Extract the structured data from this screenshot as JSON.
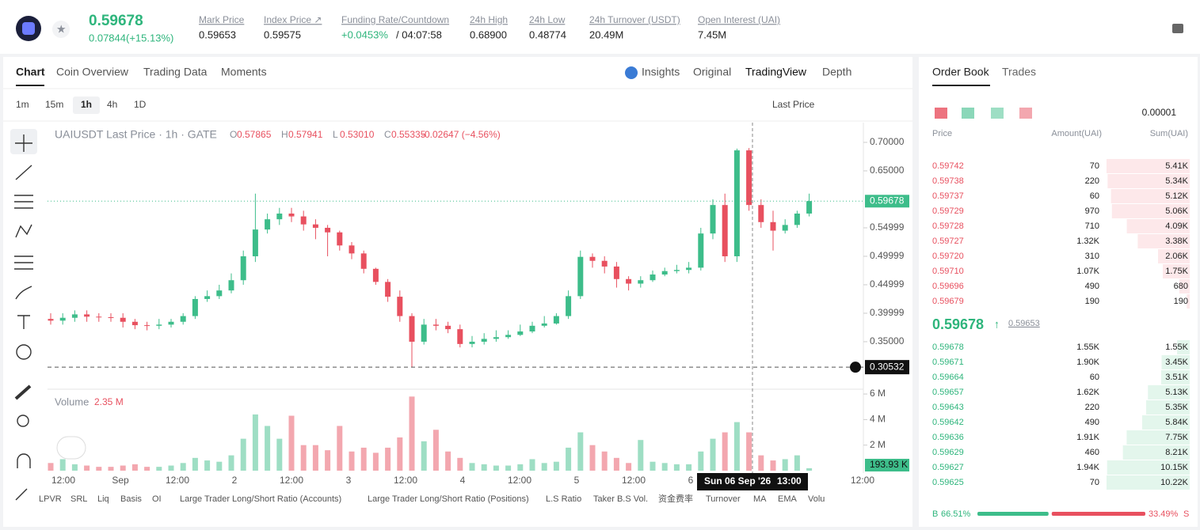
{
  "header": {
    "price": "0.59678",
    "change": "0.07844(+15.13%)",
    "stats": [
      {
        "label": "Mark Price",
        "value": "0.59653"
      },
      {
        "label": "Index Price ↗",
        "value": "0.59575"
      },
      {
        "label": "Funding Rate/Countdown",
        "value": "+0.0453%",
        "countdown": "/ 04:07:58"
      },
      {
        "label": "24h High",
        "value": "0.68900"
      },
      {
        "label": "24h Low",
        "value": "0.48774"
      },
      {
        "label": "24h Turnover (USDT)",
        "value": "20.49M"
      },
      {
        "label": "Open Interest (UAI)",
        "value": "7.45M"
      }
    ]
  },
  "chart_tabs": [
    "Chart",
    "Coin Overview",
    "Trading Data",
    "Moments"
  ],
  "view_tabs": [
    "Insights",
    "Original",
    "TradingView",
    "Depth"
  ],
  "intervals": [
    "1m",
    "15m",
    "1h",
    "4h",
    "1D"
  ],
  "price_type": "Last Price",
  "legend": {
    "title": "UAIUSDT Last Price · 1h · GATE",
    "ohlc": [
      {
        "key": "O",
        "value": "0.57865"
      },
      {
        "key": "H",
        "value": "0.57941"
      },
      {
        "key": "L",
        "value": "0.53010"
      },
      {
        "key": "C",
        "value": "0.55335"
      }
    ],
    "change": "-0.02647 (−4.56%)"
  },
  "chart_data": {
    "type": "candlestick",
    "open": [
      0.39,
      0.387,
      0.392,
      0.398,
      0.394,
      0.393,
      0.392,
      0.385,
      0.379,
      0.378,
      0.38,
      0.385,
      0.395,
      0.425,
      0.43,
      0.44,
      0.458,
      0.5,
      0.547,
      0.565,
      0.575,
      0.57,
      0.556,
      0.55,
      0.542,
      0.519,
      0.505,
      0.478,
      0.455,
      0.429,
      0.395,
      0.35,
      0.38,
      0.378,
      0.372,
      0.346,
      0.35,
      0.355,
      0.358,
      0.362,
      0.368,
      0.378,
      0.382,
      0.395,
      0.43,
      0.499,
      0.492,
      0.482,
      0.46,
      0.452,
      0.458,
      0.468,
      0.474,
      0.476,
      0.48,
      0.54,
      0.59,
      0.5,
      0.686,
      0.59,
      0.56,
      0.545,
      0.555,
      0.575
    ],
    "high": [
      0.4,
      0.4,
      0.405,
      0.405,
      0.4,
      0.4,
      0.4,
      0.39,
      0.385,
      0.39,
      0.39,
      0.4,
      0.43,
      0.44,
      0.45,
      0.47,
      0.51,
      0.61,
      0.575,
      0.585,
      0.585,
      0.58,
      0.565,
      0.555,
      0.545,
      0.525,
      0.51,
      0.48,
      0.46,
      0.44,
      0.4,
      0.39,
      0.39,
      0.385,
      0.38,
      0.36,
      0.365,
      0.37,
      0.37,
      0.38,
      0.385,
      0.395,
      0.4,
      0.44,
      0.51,
      0.505,
      0.5,
      0.49,
      0.465,
      0.465,
      0.475,
      0.48,
      0.485,
      0.49,
      0.55,
      0.6,
      0.61,
      0.689,
      0.69,
      0.6,
      0.58,
      0.565,
      0.58,
      0.61
    ],
    "low": [
      0.38,
      0.38,
      0.385,
      0.385,
      0.385,
      0.385,
      0.375,
      0.372,
      0.37,
      0.372,
      0.375,
      0.38,
      0.39,
      0.42,
      0.425,
      0.435,
      0.45,
      0.49,
      0.54,
      0.555,
      0.56,
      0.545,
      0.53,
      0.5,
      0.51,
      0.495,
      0.47,
      0.45,
      0.42,
      0.385,
      0.3053,
      0.345,
      0.37,
      0.365,
      0.34,
      0.34,
      0.345,
      0.35,
      0.355,
      0.36,
      0.365,
      0.375,
      0.38,
      0.39,
      0.425,
      0.48,
      0.47,
      0.445,
      0.44,
      0.445,
      0.455,
      0.465,
      0.47,
      0.47,
      0.475,
      0.53,
      0.49,
      0.49,
      0.58,
      0.55,
      0.51,
      0.54,
      0.55,
      0.57
    ],
    "close": [
      0.387,
      0.392,
      0.398,
      0.394,
      0.393,
      0.392,
      0.385,
      0.379,
      0.378,
      0.38,
      0.385,
      0.395,
      0.425,
      0.43,
      0.44,
      0.458,
      0.5,
      0.547,
      0.565,
      0.575,
      0.57,
      0.556,
      0.55,
      0.542,
      0.519,
      0.505,
      0.478,
      0.455,
      0.429,
      0.395,
      0.35,
      0.38,
      0.378,
      0.372,
      0.346,
      0.35,
      0.355,
      0.358,
      0.362,
      0.368,
      0.378,
      0.382,
      0.395,
      0.43,
      0.499,
      0.492,
      0.482,
      0.46,
      0.452,
      0.458,
      0.468,
      0.474,
      0.476,
      0.48,
      0.54,
      0.59,
      0.5,
      0.686,
      0.59,
      0.56,
      0.545,
      0.555,
      0.575,
      0.597
    ],
    "ylim": [
      0.2694,
      0.7347
    ],
    "yticks": [
      {
        "value": 0.7,
        "label": "0.70000"
      },
      {
        "value": 0.65,
        "label": "0.65000"
      },
      {
        "value": 0.54999,
        "label": "0.54999"
      },
      {
        "value": 0.49999,
        "label": "0.49999"
      },
      {
        "value": 0.44999,
        "label": "0.44999"
      },
      {
        "value": 0.39999,
        "label": "0.39999"
      },
      {
        "value": 0.35,
        "label": "0.35000"
      }
    ],
    "last_price": 0.59678,
    "low_line": 0.30532,
    "up_color": "#3dbd8a",
    "down_color": "#e8505f",
    "volume": {
      "title": "Volume",
      "current": "2.35 M",
      "values": [
        600000,
        900000,
        500000,
        400000,
        300000,
        300000,
        400000,
        500000,
        300000,
        300000,
        400000,
        600000,
        1000000,
        800000,
        700000,
        1200000,
        2500000,
        4400000,
        3500000,
        2500000,
        4300000,
        2000000,
        2000000,
        1600000,
        3500000,
        1500000,
        1800000,
        1400000,
        1800000,
        2600000,
        5800000,
        2300000,
        3200000,
        1500000,
        1000000,
        600000,
        500000,
        400000,
        400000,
        500000,
        900000,
        600000,
        700000,
        1800000,
        3000000,
        2000000,
        1500000,
        1000000,
        600000,
        2400000,
        700000,
        600000,
        500000,
        500000,
        1500000,
        2500000,
        3000000,
        3800000,
        3000000,
        1200000,
        800000,
        900000,
        1200000,
        193930
      ],
      "ylim": [
        0,
        6190000
      ],
      "yticks": [
        {
          "value": 6000000,
          "label": "6 M"
        },
        {
          "value": 4000000,
          "label": "4 M"
        },
        {
          "value": 2000000,
          "label": "2 M"
        }
      ],
      "last": {
        "value": 193930,
        "label": "193.93 K"
      }
    },
    "x_labels": [
      "12:00",
      "Sep",
      "12:00",
      "2",
      "12:00",
      "3",
      "12:00",
      "4",
      "12:00",
      "5",
      "12:00",
      "6"
    ],
    "x_label_edge": "12:00",
    "crosshair_date": "Sun 06 Sep '26",
    "crosshair_time": "13:00"
  },
  "indicators": [
    "LPVR",
    "SRL",
    "Liq",
    "Basis",
    "OI",
    "Large Trader Long/Short Ratio (Accounts)",
    "Large Trader Long/Short Ratio (Positions)",
    "L.S Ratio",
    "Taker B.S Vol.",
    "资金费率",
    "Turnover",
    "MA",
    "EMA",
    "Volu"
  ],
  "order_book": {
    "tabs": [
      "Order Book",
      "Trades"
    ],
    "precision": "0.00001",
    "columns": [
      "Price",
      "Amount(UAI)",
      "Sum(UAI)"
    ],
    "asks": [
      {
        "price": "0.59742",
        "amount": "70",
        "sum": {
          "value": 5410,
          "label": "5.41K"
        }
      },
      {
        "price": "0.59738",
        "amount": "220",
        "sum": {
          "value": 5340,
          "label": "5.34K"
        }
      },
      {
        "price": "0.59737",
        "amount": "60",
        "sum": {
          "value": 5120,
          "label": "5.12K"
        }
      },
      {
        "price": "0.59729",
        "amount": "970",
        "sum": {
          "value": 5060,
          "label": "5.06K"
        }
      },
      {
        "price": "0.59728",
        "amount": "710",
        "sum": {
          "value": 4090,
          "label": "4.09K"
        }
      },
      {
        "price": "0.59727",
        "amount": "1.32K",
        "sum": {
          "value": 3380,
          "label": "3.38K"
        }
      },
      {
        "price": "0.59720",
        "amount": "310",
        "sum": {
          "value": 2060,
          "label": "2.06K"
        }
      },
      {
        "price": "0.59710",
        "amount": "1.07K",
        "sum": {
          "value": 1750,
          "label": "1.75K"
        }
      },
      {
        "price": "0.59696",
        "amount": "490",
        "sum": 680
      },
      {
        "price": "0.59679",
        "amount": "190",
        "sum": 190
      }
    ],
    "last_price": "0.59678",
    "mark_price": "0.59653",
    "bids": [
      {
        "price": "0.59678",
        "amount": "1.55K",
        "sum": {
          "value": 1550,
          "label": "1.55K"
        }
      },
      {
        "price": "0.59671",
        "amount": "1.90K",
        "sum": {
          "value": 3450,
          "label": "3.45K"
        }
      },
      {
        "price": "0.59664",
        "amount": "60",
        "sum": {
          "value": 3510,
          "label": "3.51K"
        }
      },
      {
        "price": "0.59657",
        "amount": "1.62K",
        "sum": {
          "value": 5130,
          "label": "5.13K"
        }
      },
      {
        "price": "0.59643",
        "amount": "220",
        "sum": {
          "value": 5350,
          "label": "5.35K"
        }
      },
      {
        "price": "0.59642",
        "amount": "490",
        "sum": {
          "value": 5840,
          "label": "5.84K"
        }
      },
      {
        "price": "0.59636",
        "amount": "1.91K",
        "sum": {
          "value": 7750,
          "label": "7.75K"
        }
      },
      {
        "price": "0.59629",
        "amount": "460",
        "sum": {
          "value": 8210,
          "label": "8.21K"
        }
      },
      {
        "price": "0.59627",
        "amount": "1.94K",
        "sum": {
          "value": 10150,
          "label": "10.15K"
        }
      },
      {
        "price": "0.59625",
        "amount": "70",
        "sum": {
          "value": 10220,
          "label": "10.22K"
        }
      }
    ],
    "buy_key": "B",
    "buy": {
      "value": 66.51,
      "label": "66.51%"
    },
    "sell": {
      "value": 33.49,
      "label": "33.49%"
    },
    "sell_key": "S"
  }
}
